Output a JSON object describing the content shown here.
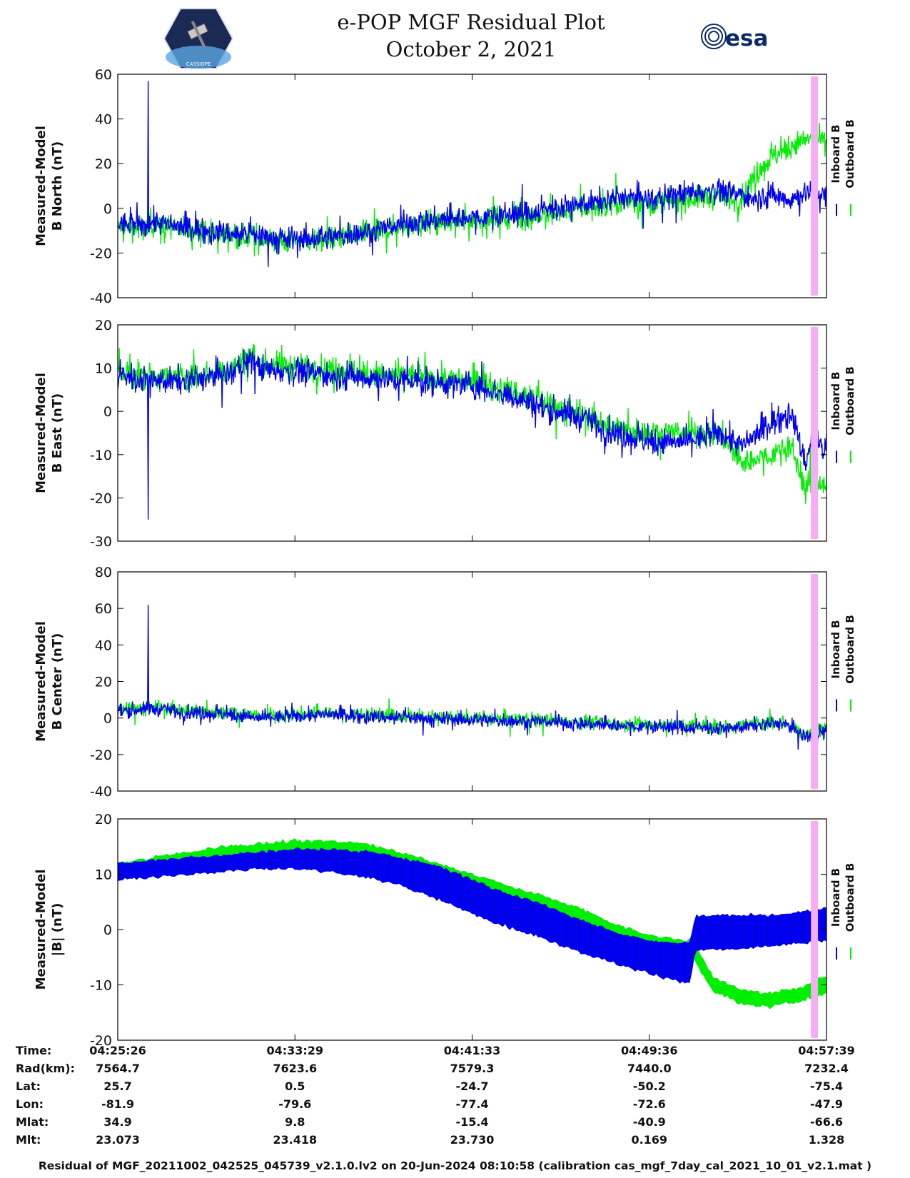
{
  "header": {
    "title_line1": "e-POP MGF Residual Plot",
    "title_line2": "October 2, 2021",
    "left_logo": "cassiope-satellite-logo",
    "left_logo_text": "CASSIOPE",
    "right_logo": "esa-logo",
    "right_logo_text": "esa"
  },
  "colors": {
    "inboard": "#0000ee",
    "outboard": "#00ee00",
    "highlight": "#f5aef5",
    "axis": "#000000"
  },
  "chart_data": [
    {
      "type": "line",
      "ylabel_line1": "Measured-Model",
      "ylabel_line2": "B North (nT)",
      "ylim": [
        -40,
        60
      ],
      "yticks": [
        "60",
        "40",
        "20",
        "0",
        "-20",
        "-40"
      ],
      "ytick_values": [
        60,
        40,
        20,
        0,
        -20,
        -40
      ],
      "legend": [
        "Inboard B",
        "Outboard B"
      ],
      "series": [
        {
          "name": "Inboard B",
          "t": [
            0,
            0.04,
            0.05,
            0.1,
            0.18,
            0.24,
            0.3,
            0.36,
            0.42,
            0.5,
            0.58,
            0.66,
            0.72,
            0.76,
            0.8,
            0.84,
            0.88,
            0.9,
            0.92,
            0.95,
            0.98,
            1
          ],
          "values": [
            -7,
            -8,
            -6,
            -9,
            -12,
            -14,
            -13,
            -10,
            -6,
            -4,
            -2,
            2,
            5,
            4,
            7,
            8,
            6,
            5,
            6,
            4,
            8,
            5
          ],
          "noise": 7
        },
        {
          "name": "Outboard B",
          "t": [
            0,
            0.04,
            0.05,
            0.1,
            0.18,
            0.24,
            0.3,
            0.36,
            0.42,
            0.5,
            0.58,
            0.66,
            0.72,
            0.76,
            0.8,
            0.84,
            0.88,
            0.9,
            0.92,
            0.95,
            0.98,
            1
          ],
          "values": [
            -8,
            -9,
            -7,
            -10,
            -13,
            -15,
            -14,
            -11,
            -7,
            -5,
            -4,
            0,
            3,
            2,
            4,
            5,
            4,
            15,
            22,
            28,
            32,
            30
          ],
          "noise": 7
        }
      ],
      "spike": {
        "t": 0.043,
        "value": 57
      },
      "highlight_t": [
        0.978,
        0.988
      ]
    },
    {
      "type": "line",
      "ylabel_line1": "Measured-Model",
      "ylabel_line2": "B East (nT)",
      "ylim": [
        -30,
        20
      ],
      "yticks": [
        "20",
        "10",
        "0",
        "-10",
        "-20",
        "-30"
      ],
      "ytick_values": [
        20,
        10,
        0,
        -10,
        -20,
        -30
      ],
      "legend": [
        "Inboard B",
        "Outboard B"
      ],
      "series": [
        {
          "name": "Inboard B",
          "t": [
            0,
            0.05,
            0.1,
            0.16,
            0.19,
            0.2,
            0.27,
            0.34,
            0.42,
            0.5,
            0.55,
            0.6,
            0.66,
            0.7,
            0.75,
            0.8,
            0.85,
            0.88,
            0.92,
            0.95,
            0.97,
            0.98,
            1
          ],
          "values": [
            8,
            7,
            7,
            9,
            12,
            10,
            9,
            8,
            7,
            6,
            4,
            1,
            -2,
            -5,
            -7,
            -7,
            -5,
            -8,
            -3,
            0,
            -12,
            -6,
            -10
          ],
          "noise": 4
        },
        {
          "name": "Outboard B",
          "t": [
            0,
            0.05,
            0.1,
            0.16,
            0.19,
            0.2,
            0.27,
            0.34,
            0.42,
            0.5,
            0.55,
            0.6,
            0.66,
            0.7,
            0.75,
            0.8,
            0.85,
            0.88,
            0.92,
            0.95,
            0.97,
            0.98,
            1
          ],
          "values": [
            9,
            8,
            8,
            10,
            13,
            11,
            10,
            9,
            8,
            7,
            5,
            2,
            -1,
            -4,
            -5,
            -5,
            -5,
            -12,
            -10,
            -8,
            -18,
            -15,
            -17
          ],
          "noise": 4
        }
      ],
      "spike": {
        "t": 0.043,
        "value": -25
      },
      "highlight_t": [
        0.978,
        0.988
      ]
    },
    {
      "type": "line",
      "ylabel_line1": "Measured-Model",
      "ylabel_line2": "B Center (nT)",
      "ylim": [
        -40,
        80
      ],
      "yticks": [
        "80",
        "60",
        "40",
        "20",
        "0",
        "-20",
        "-40"
      ],
      "ytick_values": [
        80,
        60,
        40,
        20,
        0,
        -20,
        -40
      ],
      "legend": [
        "Inboard B",
        "Outboard B"
      ],
      "series": [
        {
          "name": "Inboard B",
          "t": [
            0,
            0.05,
            0.1,
            0.16,
            0.2,
            0.3,
            0.4,
            0.5,
            0.6,
            0.7,
            0.8,
            0.86,
            0.9,
            0.94,
            0.97,
            1
          ],
          "values": [
            4,
            5,
            3,
            2,
            0,
            2,
            0,
            -1,
            -2,
            -4,
            -5,
            -6,
            -4,
            -3,
            -10,
            -7
          ],
          "noise": 5
        },
        {
          "name": "Outboard B",
          "t": [
            0,
            0.05,
            0.1,
            0.16,
            0.2,
            0.3,
            0.4,
            0.5,
            0.6,
            0.7,
            0.8,
            0.86,
            0.9,
            0.94,
            0.97,
            1
          ],
          "values": [
            5,
            6,
            4,
            3,
            1,
            3,
            1,
            0,
            -1,
            -3,
            -4,
            -5,
            -3,
            -2,
            -9,
            -5
          ],
          "noise": 5
        }
      ],
      "spike": {
        "t": 0.043,
        "value": 62
      },
      "highlight_t": [
        0.978,
        0.988
      ]
    },
    {
      "type": "area",
      "ylabel_line1": "Measured-Model",
      "ylabel_line2": "|B| (nT)",
      "ylim": [
        -20,
        20
      ],
      "yticks": [
        "20",
        "10",
        "0",
        "-10",
        "-20"
      ],
      "ytick_values": [
        20,
        10,
        0,
        -10,
        -20
      ],
      "legend": [
        "Inboard B",
        "Outboard B"
      ],
      "series": [
        {
          "name": "Outboard B",
          "t": [
            0,
            0.05,
            0.1,
            0.15,
            0.2,
            0.25,
            0.3,
            0.35,
            0.4,
            0.45,
            0.5,
            0.55,
            0.6,
            0.65,
            0.7,
            0.75,
            0.8,
            0.807,
            0.815,
            0.84,
            0.88,
            0.92,
            0.96,
            1
          ],
          "lower": [
            9.5,
            10.5,
            11.5,
            12.5,
            13.5,
            14,
            14,
            13.5,
            12,
            10,
            7.5,
            5,
            3,
            0.5,
            -2,
            -3.5,
            -3,
            -3,
            -6,
            -11,
            -13.5,
            -14,
            -13,
            -11.5
          ],
          "upper": [
            12,
            13,
            14,
            15,
            15.5,
            16,
            16,
            15.5,
            14,
            12,
            10,
            8,
            6,
            4,
            1,
            -1,
            -2,
            -2,
            -3,
            -8.5,
            -11,
            -11.5,
            -10.5,
            -8.5
          ]
        },
        {
          "name": "Inboard B",
          "t": [
            0,
            0.05,
            0.1,
            0.15,
            0.2,
            0.25,
            0.3,
            0.35,
            0.4,
            0.45,
            0.5,
            0.55,
            0.6,
            0.65,
            0.7,
            0.75,
            0.8,
            0.807,
            0.815,
            0.84,
            0.88,
            0.92,
            0.96,
            1
          ],
          "lower": [
            9,
            9.5,
            10,
            10.5,
            11,
            11,
            10.5,
            9.5,
            8,
            5.5,
            3,
            0.5,
            -1.5,
            -4,
            -6,
            -8,
            -9.5,
            -9.5,
            -4,
            -3.5,
            -3.5,
            -3,
            -2.5,
            -2
          ],
          "upper": [
            12,
            12.5,
            13,
            13.5,
            14,
            14.5,
            14.5,
            14,
            13,
            11.5,
            9,
            6.5,
            4.5,
            2,
            -0.5,
            -2,
            -2.5,
            -2.5,
            2.5,
            2.5,
            2.5,
            2.5,
            3,
            4
          ]
        }
      ],
      "highlight_t": [
        0.978,
        0.988
      ]
    }
  ],
  "annotation": {
    "row_labels": [
      "Time:",
      "Rad(km):",
      "Lat:",
      "Lon:",
      "Mlat:",
      "Mlt:"
    ],
    "columns": [
      [
        "04:25:26",
        "7564.7",
        "25.7",
        "-81.9",
        "34.9",
        "23.073"
      ],
      [
        "04:33:29",
        "7623.6",
        "0.5",
        "-79.6",
        "9.8",
        "23.418"
      ],
      [
        "04:41:33",
        "7579.3",
        "-24.7",
        "-77.4",
        "-15.4",
        "23.730"
      ],
      [
        "04:49:36",
        "7440.0",
        "-50.2",
        "-72.6",
        "-40.9",
        "0.169"
      ],
      [
        "04:57:39",
        "7232.4",
        "-75.4",
        "-47.9",
        "-66.6",
        "1.328"
      ]
    ]
  },
  "footer": "Residual of MGF_20211002_042525_045739_v2.1.0.lv2 on 20-Jun-2024 08:10:58 (calibration cas_mgf_7day_cal_2021_10_01_v2.1.mat )"
}
